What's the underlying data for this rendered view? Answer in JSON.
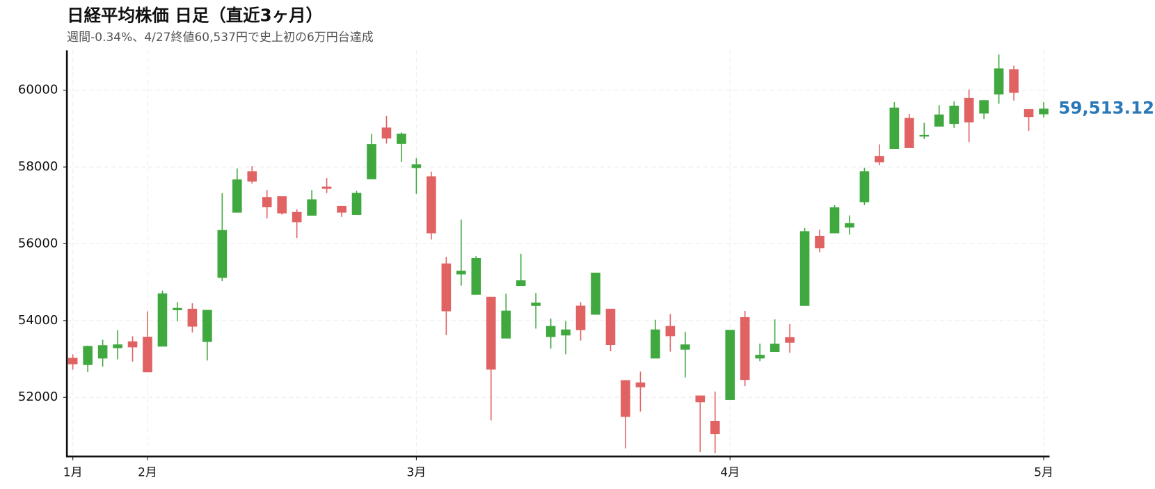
{
  "chart_data": {
    "type": "candlestick",
    "title": "日経平均株価 日足（直近3ヶ月）",
    "subtitle": "週間-0.34%、4/27終値60,537円で史上初の6万円台達成",
    "categories": [
      "1月",
      null,
      null,
      null,
      null,
      "2月",
      null,
      null,
      null,
      null,
      null,
      null,
      null,
      null,
      null,
      null,
      null,
      null,
      null,
      null,
      null,
      null,
      null,
      "3月",
      null,
      null,
      null,
      null,
      null,
      null,
      null,
      null,
      null,
      null,
      null,
      null,
      null,
      null,
      null,
      null,
      null,
      null,
      null,
      null,
      "4月",
      null,
      null,
      null,
      null,
      null,
      null,
      null,
      null,
      null,
      null,
      null,
      null,
      null,
      null,
      null,
      null,
      null,
      null,
      null,
      null,
      "5月"
    ],
    "open": [
      53020,
      52850,
      53020,
      53290,
      53450,
      53570,
      53330,
      54280,
      54300,
      53450,
      55120,
      56820,
      57880,
      57210,
      57230,
      56820,
      56740,
      57480,
      56980,
      56760,
      57690,
      59020,
      58610,
      57980,
      57750,
      55480,
      55210,
      54680,
      54610,
      53540,
      54910,
      54390,
      53580,
      53620,
      54380,
      54160,
      54300,
      52440,
      52380,
      53020,
      53850,
      53250,
      52040,
      51380,
      51940,
      54080,
      53020,
      53190,
      53560,
      54390,
      56200,
      56280,
      56430,
      57090,
      58280,
      58480,
      59270,
      58810,
      59060,
      59130,
      59790,
      59400,
      59900,
      60540,
      59500,
      59380
    ],
    "high": [
      53120,
      53350,
      53500,
      53750,
      53590,
      54240,
      54780,
      54480,
      54450,
      54270,
      57320,
      57960,
      58020,
      57400,
      57230,
      56900,
      57400,
      57710,
      56980,
      57380,
      58860,
      59330,
      58900,
      58230,
      57880,
      55660,
      56630,
      55680,
      54610,
      54700,
      55740,
      54720,
      54050,
      53990,
      54480,
      55240,
      54300,
      52440,
      52670,
      54020,
      54170,
      53710,
      52040,
      52150,
      53750,
      54250,
      53400,
      54030,
      53910,
      56410,
      56370,
      57010,
      56740,
      57980,
      58590,
      59690,
      59380,
      59150,
      59610,
      59710,
      60020,
      59730,
      60930,
      60640,
      59500,
      59690
    ],
    "low": [
      52720,
      52660,
      52800,
      52990,
      52930,
      52660,
      53330,
      53980,
      53690,
      52960,
      55030,
      56820,
      57570,
      56660,
      56760,
      56150,
      56740,
      57320,
      56700,
      56760,
      57690,
      58610,
      58130,
      57300,
      56110,
      53620,
      54910,
      54680,
      51400,
      53540,
      54910,
      53790,
      53270,
      53120,
      53480,
      54160,
      53200,
      50670,
      51630,
      53020,
      53190,
      52520,
      50570,
      50550,
      51940,
      52290,
      52940,
      53190,
      53160,
      54390,
      55780,
      56280,
      56240,
      57010,
      58050,
      58480,
      58500,
      58730,
      59060,
      59020,
      58650,
      59250,
      59650,
      59730,
      58940,
      59290
    ],
    "close": [
      52870,
      53330,
      53350,
      53370,
      53310,
      52660,
      54700,
      54320,
      53850,
      54270,
      56350,
      57670,
      57630,
      56960,
      56800,
      56570,
      57150,
      57440,
      56820,
      57320,
      58590,
      58750,
      58860,
      58060,
      56280,
      54250,
      55290,
      55620,
      52730,
      54250,
      55040,
      54460,
      53850,
      53760,
      53760,
      55240,
      53370,
      51500,
      52270,
      53760,
      53600,
      53370,
      51880,
      51050,
      53750,
      52460,
      53100,
      53390,
      53430,
      56320,
      55890,
      56940,
      56530,
      57880,
      58130,
      59540,
      58500,
      58830,
      59360,
      59590,
      59170,
      59730,
      60560,
      59940,
      59310,
      59513.12
    ],
    "up_color": "#3fa83f",
    "down_color": "#e06262",
    "annotations": [
      {
        "value": 59513.12,
        "label": "59,513.12",
        "color": "#2a78b8"
      }
    ],
    "ylim": [
      50460,
      61040
    ],
    "yticks": [
      52000,
      54000,
      56000,
      58000,
      60000
    ],
    "grid": true
  }
}
